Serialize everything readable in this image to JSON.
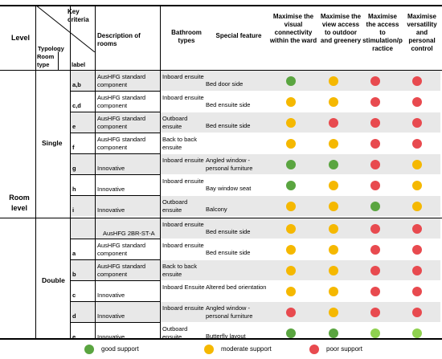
{
  "header": {
    "level": "Level",
    "key_criteria": "Key criteria",
    "typology": "Typology",
    "room_type": "Room type",
    "label": "label",
    "description": "Description of rooms",
    "bathroom": "Bathroom types",
    "special": "Special feature",
    "criteria": [
      "Maximise the visual connectivity within the ward",
      "Maximise the view access to outdoor and greenery",
      "Maximise the access to stimulation/p ractice",
      "Maximise versatility and personal control"
    ]
  },
  "level_label": "Room level",
  "colors": {
    "good": "#5aa540",
    "moderate": "#f5b800",
    "poor": "#e84a4f",
    "light_good": "#8fd14f"
  },
  "groups": [
    {
      "room_type": "Single",
      "rows": [
        {
          "label": "a,b",
          "description": "AusHFG standard component",
          "bathroom": "Inboard ensuite",
          "special": "Bed door side",
          "ratings": [
            "good",
            "moderate",
            "poor",
            "poor"
          ]
        },
        {
          "label": "c,d",
          "description": "AusHFG standard component",
          "bathroom": "Inboard ensuite",
          "special": "Bed ensuite side",
          "ratings": [
            "moderate",
            "moderate",
            "poor",
            "poor"
          ]
        },
        {
          "label": "e",
          "description": "AusHFG standard component",
          "bathroom": "Outboard ensuite",
          "special": "Bed ensuite side",
          "ratings": [
            "moderate",
            "poor",
            "poor",
            "poor"
          ]
        },
        {
          "label": "f",
          "description": "AusHFG standard component",
          "bathroom": "Back to back ensuite",
          "special": "",
          "ratings": [
            "moderate",
            "moderate",
            "poor",
            "poor"
          ]
        },
        {
          "label": "g",
          "description": "Innovative",
          "bathroom": "Inboard ensuite",
          "special": "Angled window - personal furniture",
          "ratings": [
            "good",
            "good",
            "poor",
            "moderate"
          ]
        },
        {
          "label": "h",
          "description": "Innovative",
          "bathroom": "Inboard ensuite",
          "special": "Bay window seat",
          "ratings": [
            "good",
            "moderate",
            "poor",
            "moderate"
          ]
        },
        {
          "label": "i",
          "description": "Innovative",
          "bathroom": "Outboard ensuite",
          "special": "Balcony",
          "ratings": [
            "moderate",
            "moderate",
            "good",
            "moderate"
          ]
        }
      ]
    },
    {
      "room_type": "Double",
      "rows": [
        {
          "label": "",
          "description": "AusHFG 2BR-ST-A",
          "bathroom": "Inboard ensuite",
          "special": "Bed ensuite side",
          "ratings": [
            "moderate",
            "moderate",
            "poor",
            "poor"
          ]
        },
        {
          "label": "a",
          "description": "AusHFG standard component",
          "bathroom": "Inboard ensuite",
          "special": "Bed ensuite side",
          "ratings": [
            "moderate",
            "moderate",
            "poor",
            "poor"
          ]
        },
        {
          "label": "b",
          "description": "AusHFG standard component",
          "bathroom": "Back to back ensuite",
          "special": "",
          "ratings": [
            "moderate",
            "moderate",
            "poor",
            "poor"
          ]
        },
        {
          "label": "c",
          "description": "Innovative",
          "bathroom": "Inboard Ensuite",
          "special": "Altered bed orientation",
          "ratings": [
            "moderate",
            "moderate",
            "poor",
            "poor"
          ]
        },
        {
          "label": "d",
          "description": "Innovative",
          "bathroom": "Inboard ensuite",
          "special": "Angled window - personal furniture",
          "ratings": [
            "poor",
            "moderate",
            "poor",
            "poor"
          ]
        },
        {
          "label": "e",
          "description": "Innovative",
          "bathroom": "Outboard ensuite",
          "special": "Butterfly layout",
          "ratings": [
            "good",
            "good",
            "light_good",
            "light_good"
          ]
        }
      ]
    }
  ],
  "legend": [
    {
      "rating": "good",
      "label": "good support"
    },
    {
      "rating": "moderate",
      "label": "moderate support"
    },
    {
      "rating": "poor",
      "label": "poor support"
    }
  ]
}
